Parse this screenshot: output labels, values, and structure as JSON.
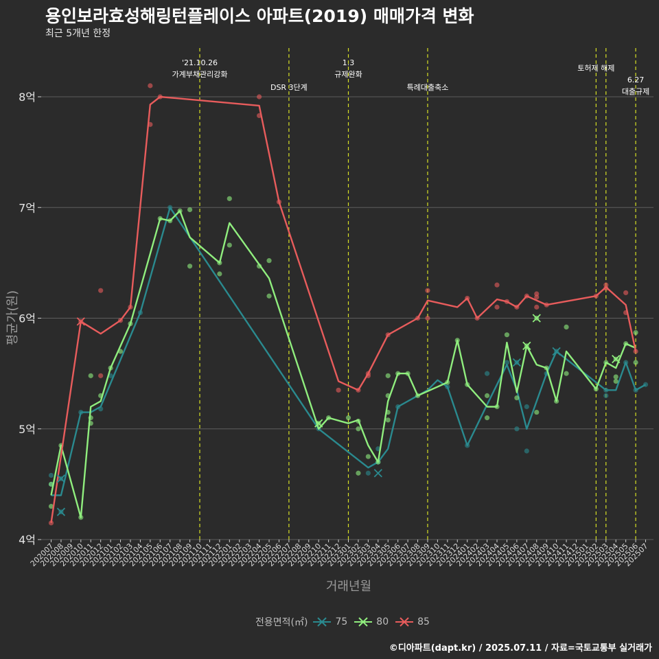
{
  "page": {
    "title": "용인보라효성해링턴플레이스 아파트(2019) 매매가격 변화",
    "subtitle": "최근 5개년 한정",
    "caption": "©디아파트(dapt.kr) / 2025.07.11 / 자료=국토교통부 실거래가"
  },
  "chart_data": {
    "type": "line",
    "title": "용인보라효성해링턴플레이스 아파트(2019) 매매가격 변화",
    "subtitle": "최근 5개년 한정",
    "xlabel": "거래년월",
    "ylabel": "평균가(원)",
    "ylim": [
      4,
      8.5
    ],
    "y_ticks": [
      4,
      5,
      6,
      7,
      8
    ],
    "y_tick_labels": [
      "4억",
      "5억",
      "6억",
      "7억",
      "8억"
    ],
    "grid": "horizontal",
    "categories": [
      "202007",
      "202008",
      "202009",
      "202010",
      "202011",
      "202012",
      "202101",
      "202102",
      "202103",
      "202104",
      "202105",
      "202106",
      "202107",
      "202108",
      "202109",
      "202110",
      "202111",
      "202112",
      "202201",
      "202202",
      "202203",
      "202204",
      "202205",
      "202206",
      "202207",
      "202208",
      "202209",
      "202210",
      "202211",
      "202212",
      "202301",
      "202302",
      "202303",
      "202304",
      "202305",
      "202306",
      "202307",
      "202308",
      "202309",
      "202310",
      "202311",
      "202312",
      "202401",
      "202402",
      "202403",
      "202404",
      "202405",
      "202406",
      "202407",
      "202408",
      "202409",
      "202410",
      "202411",
      "202412",
      "202501",
      "202502",
      "202503",
      "202504",
      "202505",
      "202506",
      "202507"
    ],
    "legend": {
      "title": "전용면적(㎡)",
      "position": "bottom"
    },
    "series": [
      {
        "name": "75",
        "color": "#2a8a8f",
        "line": [
          [
            0,
            4.4
          ],
          [
            1,
            4.4
          ],
          [
            3,
            5.15
          ],
          [
            4,
            5.15
          ],
          [
            5,
            5.2
          ],
          [
            9,
            6.05
          ],
          [
            12,
            7.0
          ],
          [
            27,
            5.0
          ],
          [
            32,
            4.65
          ],
          [
            33,
            4.7
          ],
          [
            34,
            4.82
          ],
          [
            35,
            5.2
          ],
          [
            38,
            5.35
          ],
          [
            39,
            5.44
          ],
          [
            40,
            5.38
          ],
          [
            42,
            4.85
          ],
          [
            44,
            5.22
          ],
          [
            46,
            5.58
          ],
          [
            47,
            5.35
          ],
          [
            48,
            5.0
          ],
          [
            50,
            5.5
          ],
          [
            51,
            5.7
          ],
          [
            56,
            5.35
          ],
          [
            57,
            5.35
          ],
          [
            58,
            5.6
          ],
          [
            59,
            5.35
          ],
          [
            60,
            5.4
          ]
        ],
        "points": [
          [
            0,
            4.58
          ],
          [
            0,
            4.5
          ],
          [
            1,
            4.55
          ],
          [
            1,
            4.25
          ],
          [
            3,
            5.15
          ],
          [
            5,
            5.18
          ],
          [
            6,
            5.48
          ],
          [
            9,
            6.05
          ],
          [
            12,
            7.0
          ],
          [
            27,
            5.0
          ],
          [
            32,
            4.6
          ],
          [
            33,
            4.7
          ],
          [
            33,
            4.82
          ],
          [
            35,
            5.2
          ],
          [
            40,
            5.38
          ],
          [
            42,
            4.85
          ],
          [
            44,
            5.5
          ],
          [
            46,
            5.6
          ],
          [
            47,
            5.6
          ],
          [
            47,
            5.0
          ],
          [
            48,
            5.2
          ],
          [
            48,
            4.8
          ],
          [
            50,
            5.5
          ],
          [
            51,
            5.7
          ],
          [
            56,
            5.35
          ],
          [
            56,
            5.3
          ],
          [
            58,
            5.6
          ],
          [
            59,
            5.35
          ],
          [
            60,
            5.4
          ]
        ]
      },
      {
        "name": "80",
        "color": "#90ee7e",
        "line": [
          [
            0,
            4.4
          ],
          [
            1,
            4.85
          ],
          [
            3,
            4.2
          ],
          [
            4,
            5.2
          ],
          [
            5,
            5.25
          ],
          [
            6,
            5.55
          ],
          [
            8,
            5.95
          ],
          [
            11,
            6.9
          ],
          [
            12,
            6.88
          ],
          [
            13,
            6.97
          ],
          [
            14,
            6.73
          ],
          [
            17,
            6.5
          ],
          [
            18,
            6.86
          ],
          [
            22,
            6.36
          ],
          [
            27,
            5.0
          ],
          [
            28,
            5.1
          ],
          [
            30,
            5.05
          ],
          [
            31,
            5.08
          ],
          [
            32,
            4.85
          ],
          [
            33,
            4.7
          ],
          [
            34,
            5.25
          ],
          [
            35,
            5.5
          ],
          [
            36,
            5.5
          ],
          [
            37,
            5.3
          ],
          [
            40,
            5.42
          ],
          [
            41,
            5.8
          ],
          [
            42,
            5.4
          ],
          [
            44,
            5.2
          ],
          [
            45,
            5.2
          ],
          [
            46,
            5.78
          ],
          [
            47,
            5.33
          ],
          [
            48,
            5.75
          ],
          [
            49,
            5.58
          ],
          [
            50,
            5.55
          ],
          [
            51,
            5.25
          ],
          [
            52,
            5.7
          ],
          [
            55,
            5.36
          ],
          [
            56,
            5.6
          ],
          [
            57,
            5.55
          ],
          [
            58,
            5.77
          ],
          [
            59,
            5.73
          ]
        ],
        "points": [
          [
            0,
            4.3
          ],
          [
            0,
            4.5
          ],
          [
            1,
            4.85
          ],
          [
            3,
            4.2
          ],
          [
            4,
            5.48
          ],
          [
            4,
            5.05
          ],
          [
            4,
            5.1
          ],
          [
            5,
            5.3
          ],
          [
            6,
            5.55
          ],
          [
            7,
            5.7
          ],
          [
            8,
            5.95
          ],
          [
            11,
            6.9
          ],
          [
            12,
            6.88
          ],
          [
            13,
            6.97
          ],
          [
            14,
            6.98
          ],
          [
            14,
            6.47
          ],
          [
            17,
            6.5
          ],
          [
            17,
            6.4
          ],
          [
            18,
            7.08
          ],
          [
            18,
            6.66
          ],
          [
            21,
            6.47
          ],
          [
            22,
            6.52
          ],
          [
            22,
            6.2
          ],
          [
            27,
            5.05
          ],
          [
            28,
            5.1
          ],
          [
            30,
            5.1
          ],
          [
            31,
            5.07
          ],
          [
            31,
            5.0
          ],
          [
            31,
            4.6
          ],
          [
            32,
            4.75
          ],
          [
            33,
            4.7
          ],
          [
            34,
            5.48
          ],
          [
            34,
            5.3
          ],
          [
            34,
            5.15
          ],
          [
            34,
            5.08
          ],
          [
            35,
            5.5
          ],
          [
            36,
            5.5
          ],
          [
            37,
            5.3
          ],
          [
            40,
            5.42
          ],
          [
            41,
            5.8
          ],
          [
            42,
            5.4
          ],
          [
            44,
            5.3
          ],
          [
            44,
            5.1
          ],
          [
            45,
            5.2
          ],
          [
            46,
            5.85
          ],
          [
            47,
            5.28
          ],
          [
            48,
            5.75
          ],
          [
            49,
            6.0
          ],
          [
            49,
            5.15
          ],
          [
            50,
            5.55
          ],
          [
            51,
            5.25
          ],
          [
            52,
            5.92
          ],
          [
            52,
            5.5
          ],
          [
            55,
            5.36
          ],
          [
            56,
            5.6
          ],
          [
            57,
            5.63
          ],
          [
            57,
            5.47
          ],
          [
            57,
            5.43
          ],
          [
            58,
            5.77
          ],
          [
            59,
            5.87
          ],
          [
            59,
            5.6
          ]
        ]
      },
      {
        "name": "85",
        "color": "#e85c5c",
        "line": [
          [
            0,
            4.15
          ],
          [
            3,
            5.97
          ],
          [
            5,
            5.86
          ],
          [
            7,
            5.98
          ],
          [
            8,
            6.1
          ],
          [
            10,
            7.93
          ],
          [
            11,
            8.0
          ],
          [
            21,
            7.92
          ],
          [
            23,
            7.05
          ],
          [
            29,
            5.43
          ],
          [
            31,
            5.35
          ],
          [
            32,
            5.5
          ],
          [
            34,
            5.85
          ],
          [
            37,
            6.0
          ],
          [
            38,
            6.16
          ],
          [
            41,
            6.1
          ],
          [
            42,
            6.18
          ],
          [
            43,
            6.0
          ],
          [
            45,
            6.17
          ],
          [
            46,
            6.15
          ],
          [
            47,
            6.1
          ],
          [
            48,
            6.2
          ],
          [
            50,
            6.12
          ],
          [
            55,
            6.2
          ],
          [
            56,
            6.28
          ],
          [
            58,
            6.12
          ],
          [
            59,
            5.7
          ]
        ],
        "points": [
          [
            0,
            4.15
          ],
          [
            3,
            5.97
          ],
          [
            5,
            6.25
          ],
          [
            5,
            5.48
          ],
          [
            7,
            5.98
          ],
          [
            8,
            6.1
          ],
          [
            10,
            8.1
          ],
          [
            10,
            7.75
          ],
          [
            11,
            8.0
          ],
          [
            21,
            8.0
          ],
          [
            21,
            7.83
          ],
          [
            23,
            7.05
          ],
          [
            29,
            5.35
          ],
          [
            31,
            5.35
          ],
          [
            32,
            5.5
          ],
          [
            32,
            5.48
          ],
          [
            34,
            5.85
          ],
          [
            37,
            6.0
          ],
          [
            38,
            6.25
          ],
          [
            38,
            6.0
          ],
          [
            42,
            6.18
          ],
          [
            43,
            6.0
          ],
          [
            45,
            6.3
          ],
          [
            45,
            6.1
          ],
          [
            46,
            6.15
          ],
          [
            47,
            6.1
          ],
          [
            48,
            6.2
          ],
          [
            49,
            6.22
          ],
          [
            49,
            6.19
          ],
          [
            49,
            6.1
          ],
          [
            50,
            6.12
          ],
          [
            55,
            6.2
          ],
          [
            56,
            6.3
          ],
          [
            56,
            6.27
          ],
          [
            58,
            6.23
          ],
          [
            58,
            6.05
          ],
          [
            59,
            5.7
          ]
        ]
      }
    ],
    "annotations": [
      {
        "x": 15,
        "lines": [
          "'21.10.26",
          "가계부채관리강화"
        ],
        "tier": "top"
      },
      {
        "x": 24,
        "lines": [
          "DSR 3단계"
        ],
        "tier": "low"
      },
      {
        "x": 30,
        "lines": [
          "1.3",
          "규제완화"
        ],
        "tier": "top"
      },
      {
        "x": 38,
        "lines": [
          "특례대출축소"
        ],
        "tier": "low"
      },
      {
        "x": 55,
        "lines": [
          "토허제 해제"
        ],
        "tier": "mid"
      },
      {
        "x": 56,
        "lines": [],
        "tier": "none"
      },
      {
        "x": 59,
        "lines": [
          "6.27",
          "대출규제"
        ],
        "tier": "right"
      }
    ]
  }
}
